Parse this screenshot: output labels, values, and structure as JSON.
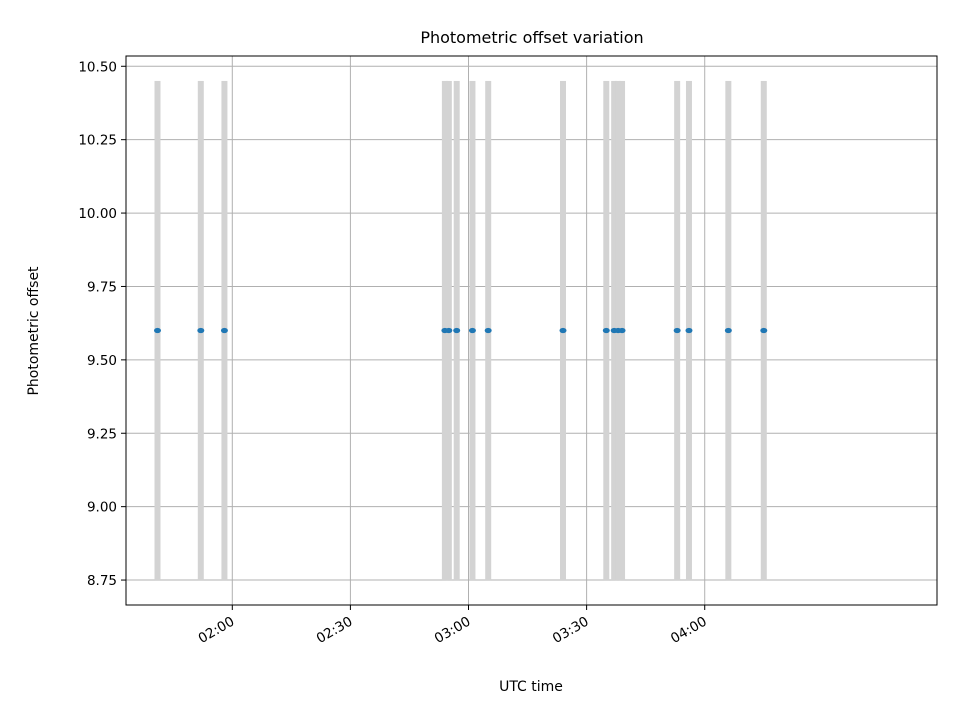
{
  "chart_data": {
    "type": "scatter",
    "title": "Photometric offset variation",
    "xlabel": "UTC time",
    "ylabel": "Photometric offset",
    "xlim": [
      "01:33",
      "04:59"
    ],
    "ylim": [
      8.665,
      10.535
    ],
    "x_ticks": [
      "02:00",
      "02:30",
      "03:00",
      "03:30",
      "04:00"
    ],
    "y_ticks": [
      8.75,
      9.0,
      9.25,
      9.5,
      9.75,
      10.0,
      10.25,
      10.5
    ],
    "y_tick_labels": [
      "8.75",
      "9.00",
      "9.25",
      "9.50",
      "9.75",
      "10.00",
      "10.25",
      "10.50"
    ],
    "grid": true,
    "band_range": [
      8.75,
      10.45
    ],
    "band_color": "#d3d3d3",
    "point_color": "#1f77b4",
    "points": [
      {
        "x": "01:41",
        "y": 9.6
      },
      {
        "x": "01:52",
        "y": 9.6
      },
      {
        "x": "01:58",
        "y": 9.6
      },
      {
        "x": "02:54",
        "y": 9.6
      },
      {
        "x": "02:55",
        "y": 9.6
      },
      {
        "x": "02:57",
        "y": 9.6
      },
      {
        "x": "03:01",
        "y": 9.6
      },
      {
        "x": "03:05",
        "y": 9.6
      },
      {
        "x": "03:24",
        "y": 9.6
      },
      {
        "x": "03:35",
        "y": 9.6
      },
      {
        "x": "03:37",
        "y": 9.6
      },
      {
        "x": "03:38",
        "y": 9.6
      },
      {
        "x": "03:39",
        "y": 9.6
      },
      {
        "x": "03:53",
        "y": 9.6
      },
      {
        "x": "03:56",
        "y": 9.6
      },
      {
        "x": "04:06",
        "y": 9.6
      },
      {
        "x": "04:15",
        "y": 9.6
      }
    ]
  }
}
